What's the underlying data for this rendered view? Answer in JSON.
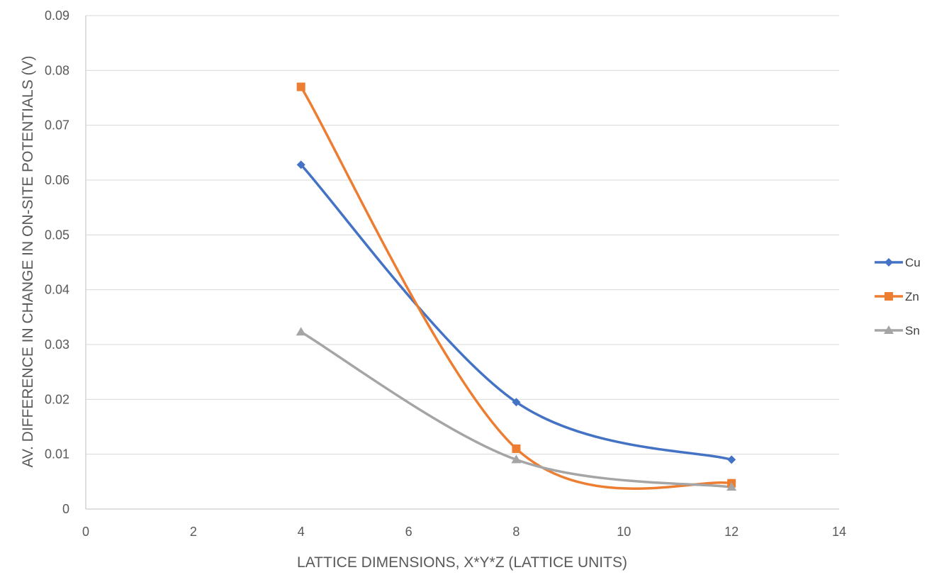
{
  "chart_data": {
    "type": "line",
    "xlabel": "LATTICE DIMENSIONS, X*Y*Z (LATTICE UNITS)",
    "ylabel": "AV. DIFFERENCE IN CHANGE IN ON-SITE POTENTIALS (V)",
    "xlim": [
      0,
      14
    ],
    "ylim": [
      0,
      0.09
    ],
    "x_ticks": [
      "0",
      "2",
      "4",
      "6",
      "8",
      "10",
      "12",
      "14"
    ],
    "y_ticks": [
      "0",
      "0.01",
      "0.02",
      "0.03",
      "0.04",
      "0.05",
      "0.06",
      "0.07",
      "0.08",
      "0.09"
    ],
    "grid": "horizontal",
    "smooth": true,
    "legend_position": "right",
    "series": [
      {
        "name": "Cu",
        "color": "#4472c4",
        "marker": "diamond",
        "x": [
          4,
          8,
          12
        ],
        "y": [
          0.0628,
          0.0195,
          0.009
        ]
      },
      {
        "name": "Zn",
        "color": "#ed7d31",
        "marker": "square",
        "x": [
          4,
          8,
          12
        ],
        "y": [
          0.077,
          0.011,
          0.0047
        ]
      },
      {
        "name": "Sn",
        "color": "#a5a5a5",
        "marker": "triangle",
        "x": [
          4,
          8,
          12
        ],
        "y": [
          0.0323,
          0.009,
          0.004
        ]
      }
    ]
  }
}
